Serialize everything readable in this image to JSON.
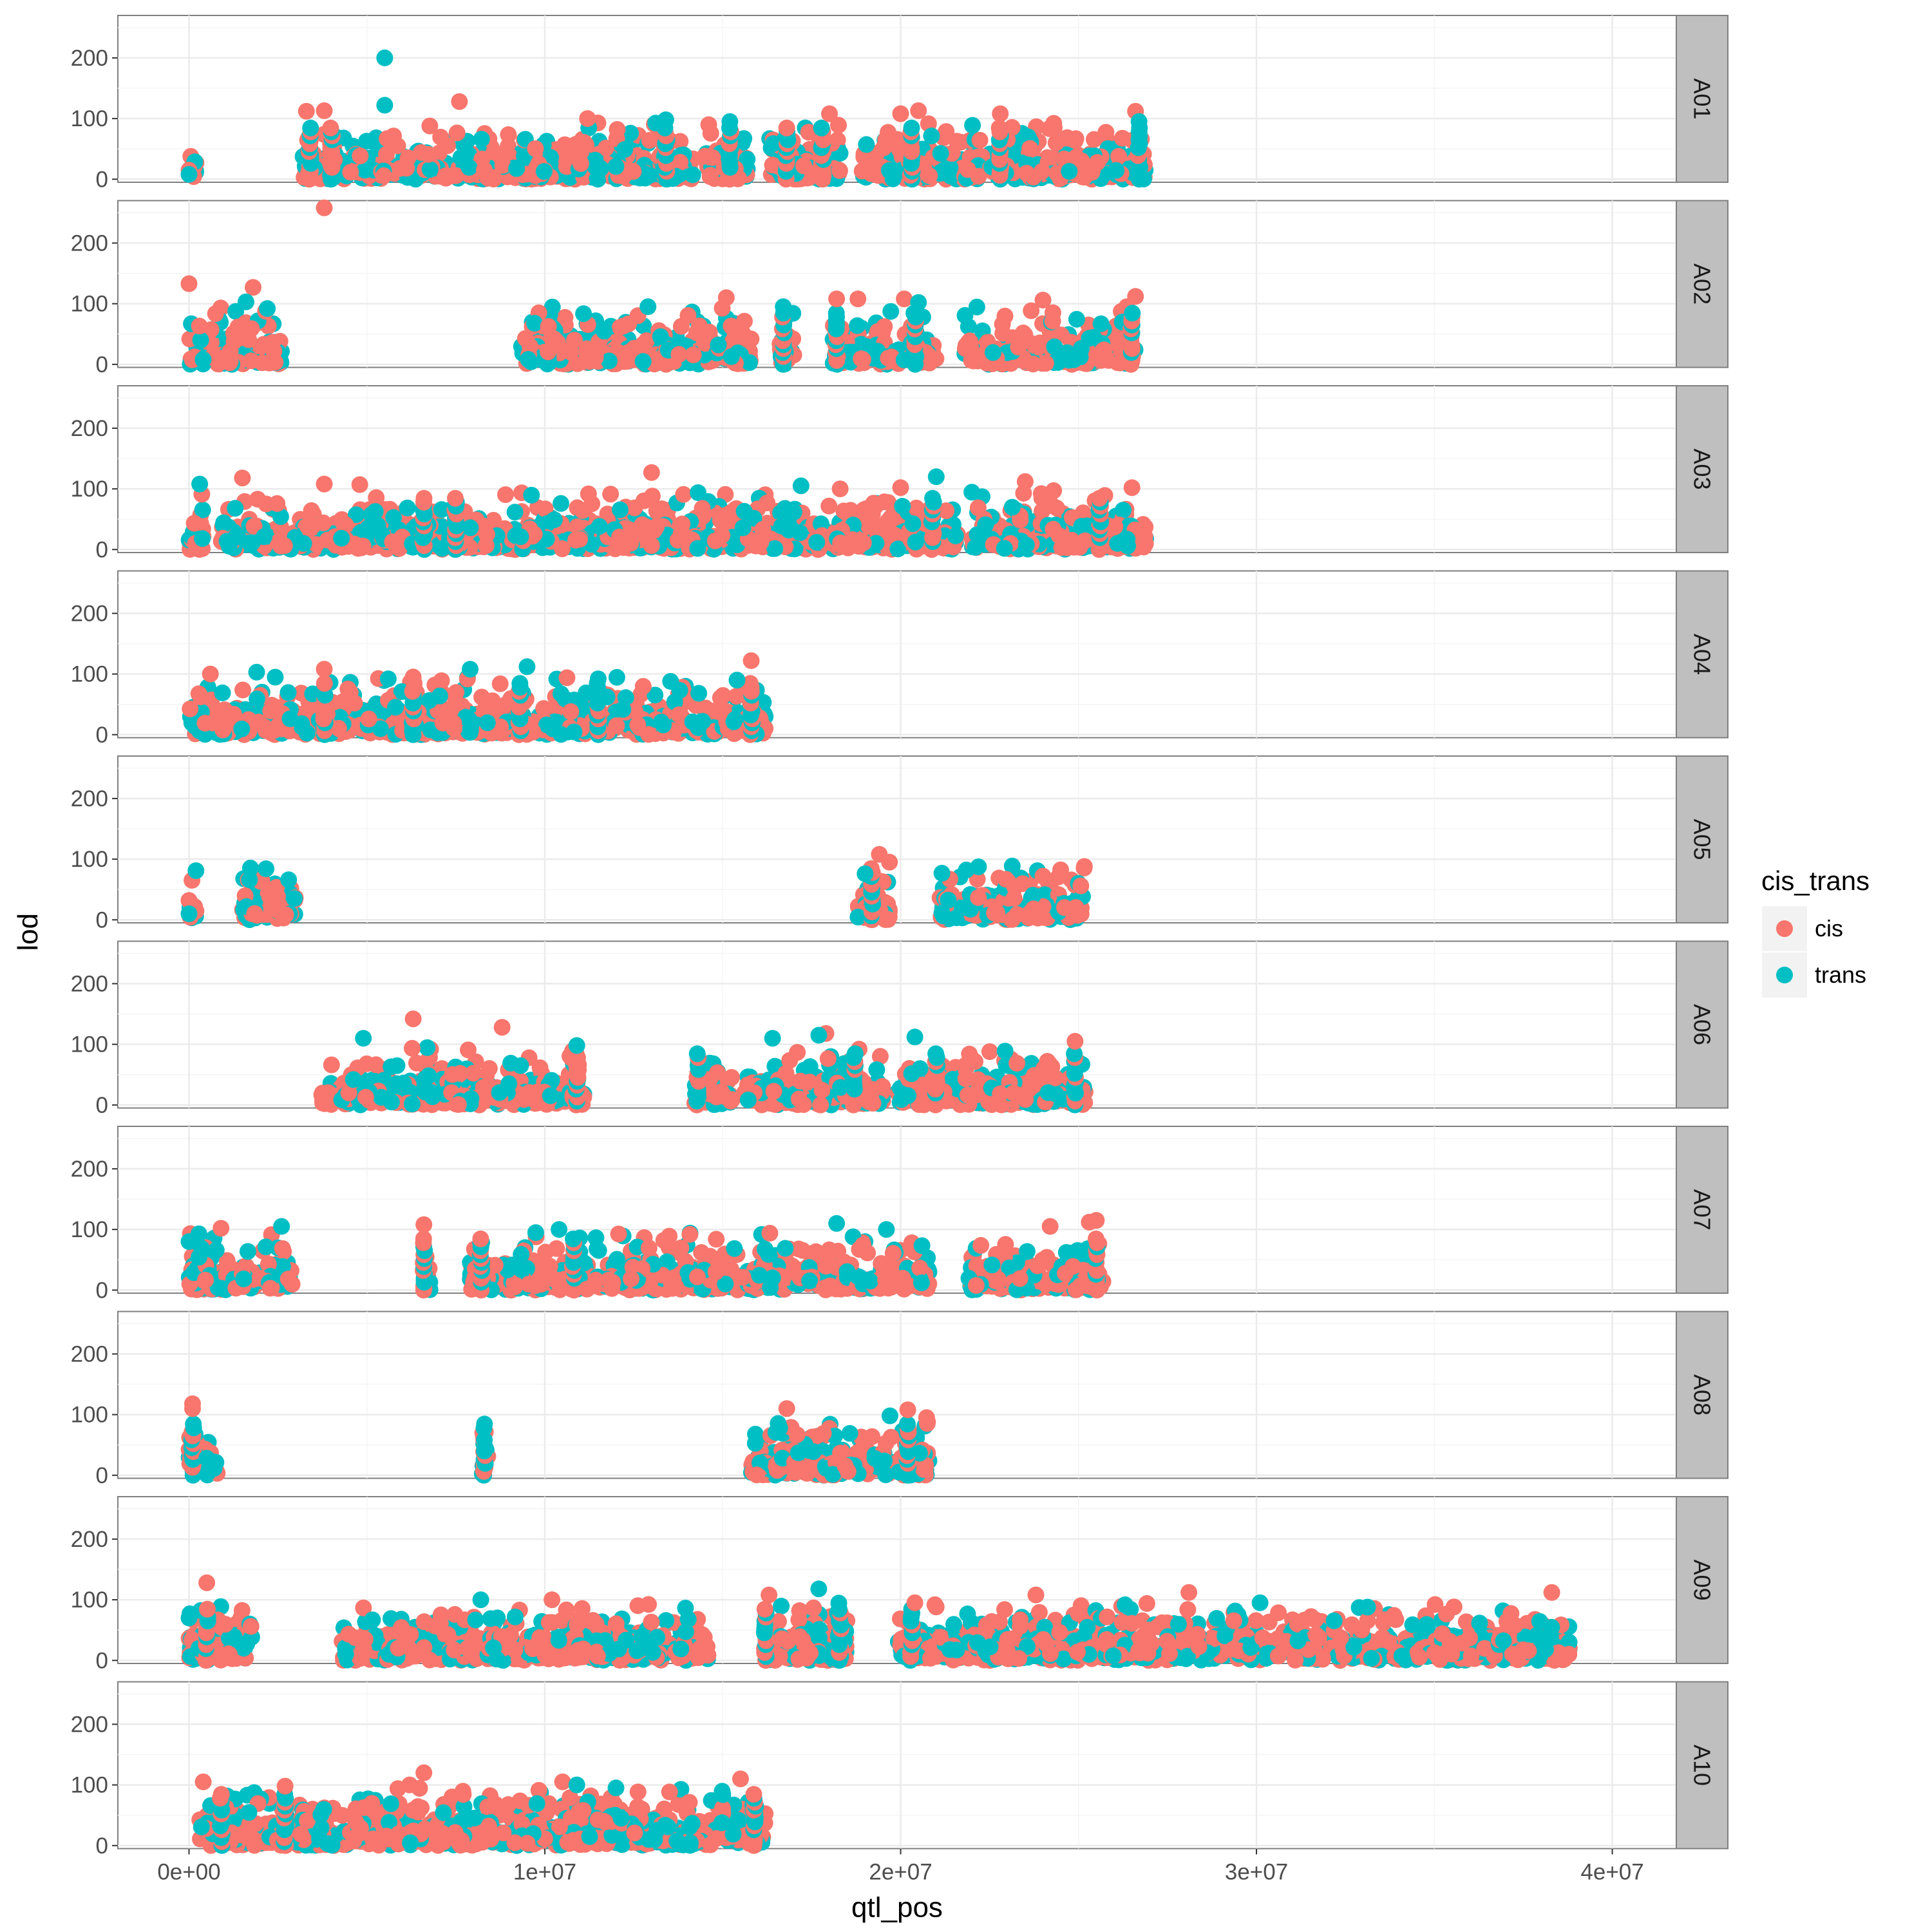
{
  "chart_data": {
    "type": "scatter",
    "facet_by": "chromosome",
    "xlabel": "qtl_pos",
    "ylabel": "lod",
    "xlim": [
      -2000000,
      41800000
    ],
    "ylim": [
      -5,
      270
    ],
    "x_ticks": [
      0,
      10000000,
      20000000,
      30000000,
      40000000
    ],
    "x_tick_labels": [
      "0e+00",
      "1e+07",
      "2e+07",
      "3e+07",
      "4e+07"
    ],
    "y_ticks": [
      0,
      100,
      200
    ],
    "y_tick_labels": [
      "0",
      "100",
      "200"
    ],
    "grid": true,
    "legend": {
      "title": "cis_trans",
      "position": "right",
      "entries": [
        {
          "name": "cis",
          "color": "#F8766D"
        },
        {
          "name": "trans",
          "color": "#00BFC4"
        }
      ]
    },
    "facets": [
      {
        "label": "A01",
        "x_max": 26900000,
        "ranges": [
          [
            0,
            200000
          ],
          [
            3200000,
            26900000
          ]
        ],
        "gaps": [
          [
            14200000,
            14500000
          ],
          [
            15700000,
            16300000
          ],
          [
            18300000,
            18900000
          ],
          [
            22300000,
            22500000
          ]
        ],
        "columns": [
          3400000,
          4000000,
          13400000,
          15200000,
          16800000,
          17800000,
          20300000,
          22800000,
          26700000
        ],
        "points": [
          {
            "x": 5500000,
            "y": 200,
            "group": "trans"
          },
          {
            "x": 5500000,
            "y": 122,
            "group": "trans"
          },
          {
            "x": 7600000,
            "y": 128,
            "group": "cis"
          },
          {
            "x": 3300000,
            "y": 112,
            "group": "cis"
          },
          {
            "x": 3800000,
            "y": 113,
            "group": "cis"
          },
          {
            "x": 20500000,
            "y": 113,
            "group": "cis"
          },
          {
            "x": 26600000,
            "y": 112,
            "group": "cis"
          },
          {
            "x": 18000000,
            "y": 108,
            "group": "cis"
          },
          {
            "x": 20000000,
            "y": 108,
            "group": "cis"
          },
          {
            "x": 22800000,
            "y": 108,
            "group": "cis"
          },
          {
            "x": 11200000,
            "y": 100,
            "group": "cis"
          },
          {
            "x": 13400000,
            "y": 98,
            "group": "trans"
          },
          {
            "x": 15200000,
            "y": 95,
            "group": "trans"
          },
          {
            "x": 26700000,
            "y": 95,
            "group": "trans"
          },
          {
            "x": 0,
            "y": 15,
            "group": "cis"
          },
          {
            "x": 0,
            "y": 8,
            "group": "trans"
          }
        ]
      },
      {
        "label": "A02",
        "x_max": 26600000,
        "ranges": [
          [
            0,
            2600000
          ],
          [
            9300000,
            26600000
          ]
        ],
        "gaps": [
          [
            15800000,
            16600000
          ],
          [
            17000000,
            18100000
          ],
          [
            21000000,
            21800000
          ]
        ],
        "columns": [
          16700000,
          18200000,
          20400000,
          26500000
        ],
        "points": [
          {
            "x": 3800000,
            "y": 258,
            "group": "cis"
          },
          {
            "x": 0,
            "y": 133,
            "group": "cis"
          },
          {
            "x": 1800000,
            "y": 127,
            "group": "cis"
          },
          {
            "x": 26600000,
            "y": 112,
            "group": "cis"
          },
          {
            "x": 15100000,
            "y": 110,
            "group": "cis"
          },
          {
            "x": 18200000,
            "y": 108,
            "group": "cis"
          },
          {
            "x": 18800000,
            "y": 108,
            "group": "cis"
          },
          {
            "x": 20100000,
            "y": 108,
            "group": "cis"
          },
          {
            "x": 24000000,
            "y": 106,
            "group": "cis"
          },
          {
            "x": 20500000,
            "y": 102,
            "group": "trans"
          },
          {
            "x": 1600000,
            "y": 103,
            "group": "trans"
          },
          {
            "x": 2200000,
            "y": 92,
            "group": "trans"
          },
          {
            "x": 16700000,
            "y": 95,
            "group": "trans"
          },
          {
            "x": 12900000,
            "y": 95,
            "group": "trans"
          }
        ]
      },
      {
        "label": "A03",
        "x_max": 26900000,
        "ranges": [
          [
            0,
            26900000
          ]
        ],
        "gaps": [
          [
            400000,
            900000
          ],
          [
            21600000,
            22000000
          ]
        ],
        "columns": [
          6600000,
          7500000,
          20900000,
          25600000
        ],
        "points": [
          {
            "x": 13000000,
            "y": 127,
            "group": "cis"
          },
          {
            "x": 21000000,
            "y": 120,
            "group": "trans"
          },
          {
            "x": 1500000,
            "y": 118,
            "group": "cis"
          },
          {
            "x": 23500000,
            "y": 112,
            "group": "cis"
          },
          {
            "x": 300000,
            "y": 108,
            "group": "trans"
          },
          {
            "x": 3800000,
            "y": 108,
            "group": "cis"
          },
          {
            "x": 4800000,
            "y": 107,
            "group": "cis"
          },
          {
            "x": 17200000,
            "y": 105,
            "group": "trans"
          },
          {
            "x": 26500000,
            "y": 102,
            "group": "cis"
          },
          {
            "x": 20000000,
            "y": 102,
            "group": "cis"
          },
          {
            "x": 18300000,
            "y": 100,
            "group": "cis"
          },
          {
            "x": 24300000,
            "y": 97,
            "group": "cis"
          }
        ]
      },
      {
        "label": "A04",
        "x_max": 16200000,
        "ranges": [
          [
            0,
            16200000
          ]
        ],
        "gaps": [],
        "columns": [
          3800000,
          6300000,
          9300000,
          11500000,
          15800000
        ],
        "points": [
          {
            "x": 15800000,
            "y": 122,
            "group": "cis"
          },
          {
            "x": 9500000,
            "y": 112,
            "group": "trans"
          },
          {
            "x": 7900000,
            "y": 108,
            "group": "trans"
          },
          {
            "x": 3800000,
            "y": 108,
            "group": "cis"
          },
          {
            "x": 1900000,
            "y": 103,
            "group": "trans"
          },
          {
            "x": 600000,
            "y": 100,
            "group": "cis"
          },
          {
            "x": 6300000,
            "y": 95,
            "group": "cis"
          },
          {
            "x": 5600000,
            "y": 92,
            "group": "trans"
          },
          {
            "x": 15400000,
            "y": 90,
            "group": "trans"
          },
          {
            "x": 11500000,
            "y": 92,
            "group": "trans"
          }
        ]
      },
      {
        "label": "A05",
        "x_max": 25200000,
        "ranges": [
          [
            0,
            200000
          ],
          [
            1500000,
            3000000
          ],
          [
            18800000,
            19700000
          ],
          [
            21100000,
            25200000
          ]
        ],
        "gaps": [],
        "columns": [
          19200000
        ],
        "points": [
          {
            "x": 19400000,
            "y": 108,
            "group": "cis"
          },
          {
            "x": 19000000,
            "y": 76,
            "group": "trans"
          },
          {
            "x": 24000000,
            "y": 72,
            "group": "cis"
          },
          {
            "x": 1700000,
            "y": 66,
            "group": "trans"
          },
          {
            "x": 2800000,
            "y": 66,
            "group": "trans"
          },
          {
            "x": 0,
            "y": 32,
            "group": "cis"
          },
          {
            "x": 0,
            "y": 10,
            "group": "trans"
          }
        ]
      },
      {
        "label": "A06",
        "x_max": 25200000,
        "ranges": [
          [
            3700000,
            11100000
          ],
          [
            14200000,
            25200000
          ]
        ],
        "gaps": [
          [
            15300000,
            15600000
          ],
          [
            19500000,
            19900000
          ]
        ],
        "columns": [
          10900000,
          14300000,
          18700000,
          21000000,
          24900000
        ],
        "points": [
          {
            "x": 6300000,
            "y": 142,
            "group": "cis"
          },
          {
            "x": 8800000,
            "y": 128,
            "group": "cis"
          },
          {
            "x": 17900000,
            "y": 118,
            "group": "cis"
          },
          {
            "x": 17700000,
            "y": 115,
            "group": "trans"
          },
          {
            "x": 20400000,
            "y": 112,
            "group": "trans"
          },
          {
            "x": 4900000,
            "y": 110,
            "group": "trans"
          },
          {
            "x": 16400000,
            "y": 110,
            "group": "trans"
          },
          {
            "x": 24900000,
            "y": 105,
            "group": "cis"
          },
          {
            "x": 10900000,
            "y": 98,
            "group": "trans"
          }
        ]
      },
      {
        "label": "A07",
        "x_max": 25700000,
        "ranges": [
          [
            0,
            2900000
          ],
          [
            6600000,
            6800000
          ],
          [
            7800000,
            20800000
          ],
          [
            21900000,
            25700000
          ]
        ],
        "gaps": [
          [
            3000000,
            6500000
          ],
          [
            6900000,
            7700000
          ]
        ],
        "columns": [
          6600000,
          8200000,
          10800000,
          25500000
        ],
        "points": [
          {
            "x": 6600000,
            "y": 108,
            "group": "cis"
          },
          {
            "x": 18200000,
            "y": 110,
            "group": "trans"
          },
          {
            "x": 25500000,
            "y": 115,
            "group": "cis"
          },
          {
            "x": 25300000,
            "y": 112,
            "group": "cis"
          },
          {
            "x": 24200000,
            "y": 105,
            "group": "cis"
          },
          {
            "x": 2600000,
            "y": 105,
            "group": "trans"
          },
          {
            "x": 900000,
            "y": 102,
            "group": "cis"
          },
          {
            "x": 0,
            "y": 80,
            "group": "trans"
          },
          {
            "x": 10400000,
            "y": 100,
            "group": "trans"
          },
          {
            "x": 19600000,
            "y": 100,
            "group": "trans"
          }
        ]
      },
      {
        "label": "A08",
        "x_max": 20800000,
        "ranges": [
          [
            0,
            800000
          ],
          [
            8200000,
            8400000
          ],
          [
            15800000,
            20800000
          ]
        ],
        "gaps": [],
        "columns": [
          100000,
          8300000,
          20200000
        ],
        "points": [
          {
            "x": 100000,
            "y": 118,
            "group": "cis"
          },
          {
            "x": 100000,
            "y": 110,
            "group": "cis"
          },
          {
            "x": 16800000,
            "y": 110,
            "group": "cis"
          },
          {
            "x": 20200000,
            "y": 108,
            "group": "cis"
          },
          {
            "x": 19700000,
            "y": 98,
            "group": "trans"
          },
          {
            "x": 16600000,
            "y": 78,
            "group": "trans"
          },
          {
            "x": 8300000,
            "y": 58,
            "group": "trans"
          },
          {
            "x": 8300000,
            "y": 40,
            "group": "trans"
          },
          {
            "x": 500000,
            "y": 28,
            "group": "trans"
          }
        ]
      },
      {
        "label": "A09",
        "x_max": 38800000,
        "ranges": [
          [
            0,
            1800000
          ],
          [
            4300000,
            38800000
          ]
        ],
        "gaps": [
          [
            14600000,
            16300000
          ],
          [
            18500000,
            19900000
          ]
        ],
        "columns": [
          500000,
          16200000,
          18300000,
          20300000
        ],
        "points": [
          {
            "x": 500000,
            "y": 128,
            "group": "cis"
          },
          {
            "x": 17700000,
            "y": 118,
            "group": "trans"
          },
          {
            "x": 16300000,
            "y": 108,
            "group": "cis"
          },
          {
            "x": 28100000,
            "y": 112,
            "group": "cis"
          },
          {
            "x": 38300000,
            "y": 112,
            "group": "cis"
          },
          {
            "x": 23800000,
            "y": 108,
            "group": "cis"
          },
          {
            "x": 8200000,
            "y": 100,
            "group": "trans"
          },
          {
            "x": 10200000,
            "y": 100,
            "group": "cis"
          },
          {
            "x": 30100000,
            "y": 95,
            "group": "trans"
          },
          {
            "x": 20400000,
            "y": 95,
            "group": "cis"
          },
          {
            "x": 0,
            "y": 70,
            "group": "trans"
          }
        ]
      },
      {
        "label": "A10",
        "x_max": 16200000,
        "ranges": [
          [
            300000,
            16200000
          ]
        ],
        "gaps": [],
        "columns": [
          900000,
          2700000,
          15900000
        ],
        "points": [
          {
            "x": 6600000,
            "y": 120,
            "group": "cis"
          },
          {
            "x": 15500000,
            "y": 110,
            "group": "cis"
          },
          {
            "x": 10500000,
            "y": 105,
            "group": "cis"
          },
          {
            "x": 400000,
            "y": 105,
            "group": "cis"
          },
          {
            "x": 6200000,
            "y": 100,
            "group": "cis"
          },
          {
            "x": 10900000,
            "y": 100,
            "group": "trans"
          },
          {
            "x": 12000000,
            "y": 95,
            "group": "trans"
          },
          {
            "x": 2700000,
            "y": 98,
            "group": "cis"
          },
          {
            "x": 15000000,
            "y": 84,
            "group": "trans"
          }
        ]
      }
    ]
  }
}
